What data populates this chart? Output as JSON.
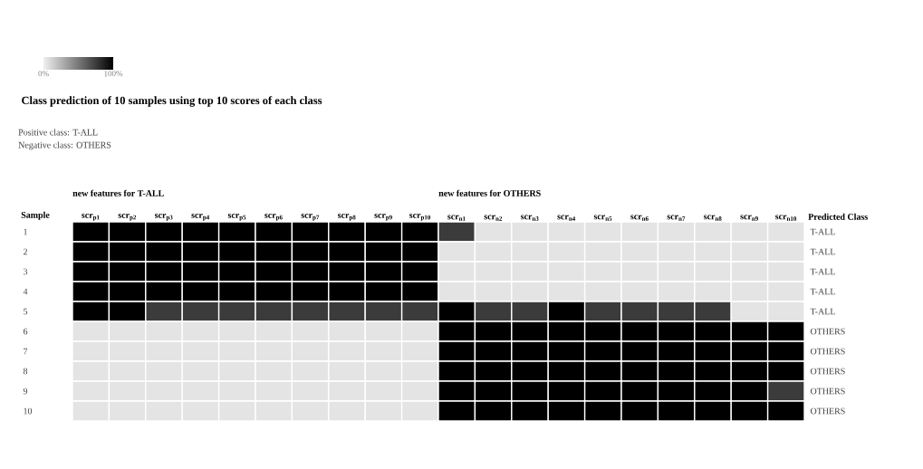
{
  "chart_data": {
    "type": "heatmap",
    "title": "Class prediction of 10 samples using top 10 scores of each class",
    "annotations": [
      "Positive class: T-ALL",
      "Negative class: OTHERS",
      "new features for T-ALL",
      "new features for OTHERS"
    ],
    "ylabel": "Sample",
    "y2label": "Predicted Class",
    "categories": [
      "scr$_{p1}$",
      "scr$_{p2}$",
      "scr$_{p3}$",
      "scr$_{p4}$",
      "scr$_{p5}$",
      "scr$_{p6}$",
      "scr$_{p7}$",
      "scr$_{p8}$",
      "scr$_{p9}$",
      "scr$_{p10}$",
      "scr$_{n1}$",
      "scr$_{n2}$",
      "scr$_{n3}$",
      "scr$_{n4}$",
      "scr$_{n5}$",
      "scr$_{n6}$",
      "scr$_{n7}$",
      "scr$_{n8}$",
      "scr$_{n9}$",
      "scr$_{n10}$"
    ],
    "y_categories": [
      "1",
      "2",
      "3",
      "4",
      "5",
      "6",
      "7",
      "8",
      "9",
      "10"
    ],
    "y2_categories": [
      "T-ALL",
      "T-ALL",
      "T-ALL",
      "T-ALL",
      "T-ALL",
      "OTHERS",
      "OTHERS",
      "OTHERS",
      "OTHERS",
      "OTHERS"
    ],
    "cells": [
      [
        100,
        100,
        100,
        100,
        100,
        100,
        100,
        100,
        100,
        100,
        75,
        5,
        5,
        5,
        5,
        5,
        5,
        5,
        5,
        5
      ],
      [
        100,
        100,
        100,
        100,
        100,
        100,
        100,
        100,
        100,
        100,
        5,
        5,
        5,
        5,
        5,
        5,
        5,
        5,
        5,
        5
      ],
      [
        100,
        100,
        100,
        100,
        100,
        100,
        100,
        100,
        100,
        100,
        5,
        5,
        5,
        5,
        5,
        5,
        5,
        5,
        5,
        5
      ],
      [
        100,
        100,
        100,
        100,
        100,
        100,
        100,
        100,
        100,
        100,
        5,
        5,
        5,
        5,
        5,
        5,
        5,
        5,
        5,
        5
      ],
      [
        100,
        100,
        75,
        75,
        75,
        75,
        75,
        75,
        75,
        75,
        100,
        75,
        75,
        100,
        75,
        75,
        75,
        75,
        5,
        5
      ],
      [
        5,
        5,
        5,
        5,
        5,
        5,
        5,
        5,
        5,
        5,
        100,
        100,
        100,
        100,
        100,
        100,
        100,
        100,
        100,
        100
      ],
      [
        5,
        5,
        5,
        5,
        5,
        5,
        5,
        5,
        5,
        5,
        100,
        100,
        100,
        100,
        100,
        100,
        100,
        100,
        100,
        100
      ],
      [
        5,
        5,
        5,
        5,
        5,
        5,
        5,
        5,
        5,
        5,
        100,
        100,
        100,
        100,
        100,
        100,
        100,
        100,
        100,
        100
      ],
      [
        5,
        5,
        5,
        5,
        5,
        5,
        5,
        5,
        5,
        5,
        100,
        100,
        100,
        100,
        100,
        100,
        100,
        100,
        100,
        75
      ],
      [
        5,
        5,
        5,
        5,
        5,
        5,
        5,
        5,
        5,
        5,
        100,
        100,
        100,
        100,
        100,
        100,
        100,
        100,
        100,
        100
      ]
    ],
    "clim": [
      0,
      100
    ],
    "cticks": [
      {
        "value": 0,
        "label": "0%"
      },
      {
        "value": 100,
        "label": "100%"
      }
    ]
  }
}
